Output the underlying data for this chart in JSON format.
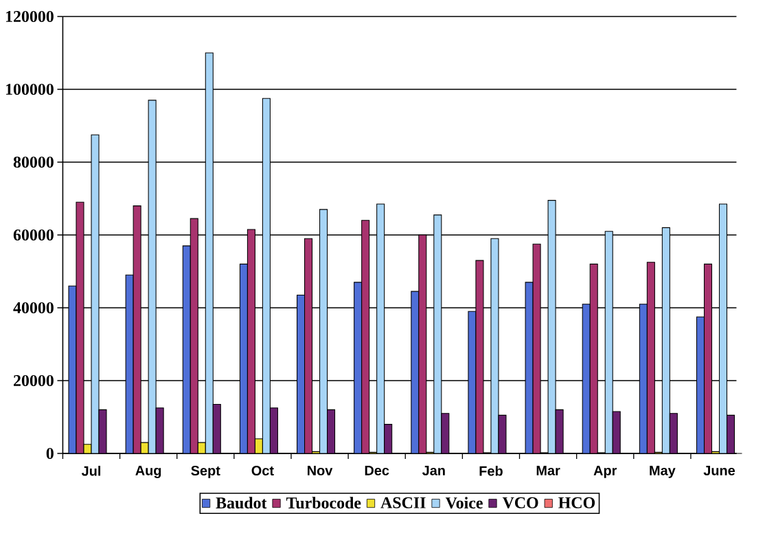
{
  "chart_data": {
    "type": "bar",
    "categories": [
      "Jul",
      "Aug",
      "Sept",
      "Oct",
      "Nov",
      "Dec",
      "Jan",
      "Feb",
      "Mar",
      "Apr",
      "May",
      "June"
    ],
    "series": [
      {
        "name": "Baudot",
        "color": "#4f6fd8",
        "values": [
          46000,
          49000,
          57000,
          52000,
          43500,
          47000,
          44500,
          39000,
          47000,
          41000,
          41000,
          37500
        ]
      },
      {
        "name": "Turbocode",
        "color": "#a8336e",
        "values": [
          69000,
          68000,
          64500,
          61500,
          59000,
          64000,
          60000,
          53000,
          57500,
          52000,
          52500,
          52000
        ]
      },
      {
        "name": "ASCII",
        "color": "#f0e030",
        "values": [
          2500,
          3000,
          3000,
          4000,
          500,
          300,
          300,
          200,
          200,
          200,
          300,
          500
        ]
      },
      {
        "name": "Voice",
        "color": "#a6d4f6",
        "values": [
          87500,
          97000,
          110000,
          97500,
          67000,
          68500,
          65500,
          59000,
          69500,
          61000,
          62000,
          68500
        ]
      },
      {
        "name": "VCO",
        "color": "#6a2170",
        "values": [
          12000,
          12500,
          13500,
          12500,
          12000,
          8000,
          11000,
          10500,
          12000,
          11500,
          11000,
          10500
        ]
      },
      {
        "name": "HCO",
        "color": "#f07070",
        "values": [
          0,
          0,
          0,
          0,
          0,
          0,
          0,
          0,
          0,
          0,
          0,
          0
        ]
      }
    ],
    "ylim": [
      0,
      120000
    ],
    "yticks": [
      0,
      20000,
      40000,
      60000,
      80000,
      100000,
      120000
    ],
    "grid": "y",
    "legend": "bottom"
  }
}
